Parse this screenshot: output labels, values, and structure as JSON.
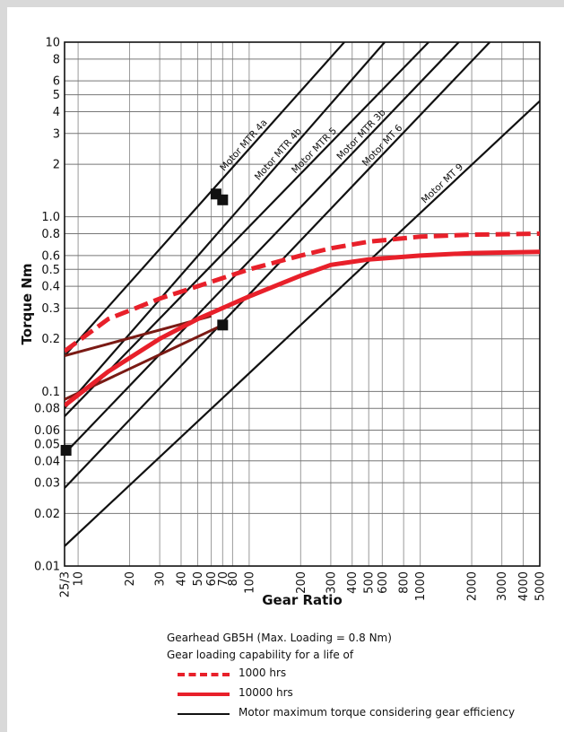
{
  "chart_data": {
    "type": "line",
    "xlabel": "Gear Ratio",
    "ylabel": "Torque Nm",
    "xscale": "log",
    "yscale": "log",
    "xlim": [
      8.3333,
      5000
    ],
    "ylim": [
      0.01,
      10
    ],
    "grid": true,
    "x_ticks": [
      {
        "v": 8.3333,
        "label": "25/3"
      },
      {
        "v": 10,
        "label": "10"
      },
      {
        "v": 20,
        "label": "20"
      },
      {
        "v": 30,
        "label": "30"
      },
      {
        "v": 40,
        "label": "40"
      },
      {
        "v": 50,
        "label": "50"
      },
      {
        "v": 60,
        "label": "60"
      },
      {
        "v": 70,
        "label": "70"
      },
      {
        "v": 80,
        "label": "80"
      },
      {
        "v": 100,
        "label": "100"
      },
      {
        "v": 200,
        "label": "200"
      },
      {
        "v": 300,
        "label": "300"
      },
      {
        "v": 400,
        "label": "400"
      },
      {
        "v": 500,
        "label": "500"
      },
      {
        "v": 600,
        "label": "600"
      },
      {
        "v": 800,
        "label": "800"
      },
      {
        "v": 1000,
        "label": "1000"
      },
      {
        "v": 2000,
        "label": "2000"
      },
      {
        "v": 3000,
        "label": "3000"
      },
      {
        "v": 4000,
        "label": "4000"
      },
      {
        "v": 5000,
        "label": "5000"
      }
    ],
    "y_ticks": [
      {
        "v": 10,
        "label": "10"
      },
      {
        "v": 8,
        "label": "8"
      },
      {
        "v": 6,
        "label": "6"
      },
      {
        "v": 5,
        "label": "5"
      },
      {
        "v": 4,
        "label": "4"
      },
      {
        "v": 3,
        "label": "3"
      },
      {
        "v": 2,
        "label": "2"
      },
      {
        "v": 1,
        "label": "1.0"
      },
      {
        "v": 0.8,
        "label": "0.8"
      },
      {
        "v": 0.6,
        "label": "0.6"
      },
      {
        "v": 0.5,
        "label": "0.5"
      },
      {
        "v": 0.4,
        "label": "0.4"
      },
      {
        "v": 0.3,
        "label": "0.3"
      },
      {
        "v": 0.2,
        "label": "0.2"
      },
      {
        "v": 0.1,
        "label": "0.1"
      },
      {
        "v": 0.08,
        "label": "0.08"
      },
      {
        "v": 0.06,
        "label": "0.06"
      },
      {
        "v": 0.05,
        "label": "0.05"
      },
      {
        "v": 0.04,
        "label": "0.04"
      },
      {
        "v": 0.03,
        "label": "0.03"
      },
      {
        "v": 0.02,
        "label": "0.02"
      },
      {
        "v": 0.01,
        "label": "0.01"
      }
    ],
    "gear_series": [
      {
        "name": "1000 hrs",
        "color": "#e8202a",
        "style": "dashed",
        "x": [
          8.3333,
          15,
          30,
          50,
          100,
          200,
          300,
          500,
          1000,
          2000,
          5000
        ],
        "y": [
          0.17,
          0.26,
          0.34,
          0.4,
          0.5,
          0.6,
          0.66,
          0.72,
          0.77,
          0.79,
          0.8
        ]
      },
      {
        "name": "10000 hrs",
        "color": "#e8202a",
        "style": "solid",
        "x": [
          8.3333,
          15,
          30,
          50,
          100,
          200,
          300,
          500,
          1000,
          2000,
          5000
        ],
        "y": [
          0.083,
          0.13,
          0.2,
          0.26,
          0.35,
          0.46,
          0.53,
          0.57,
          0.6,
          0.62,
          0.63
        ]
      }
    ],
    "motor_series": [
      {
        "name": "Motor MTR 4a",
        "x1": 8.3333,
        "y1": 0.16,
        "x2": 360,
        "y2": 10,
        "label_x": 74
      },
      {
        "name": "Motor MTR 4b",
        "x1": 8.3333,
        "y1": 0.08,
        "x2": 620,
        "y2": 10,
        "label_x": 118
      },
      {
        "name": "Motor MTR 5",
        "x1": 8.3333,
        "y1": 0.072,
        "x2": 1120,
        "y2": 10,
        "label_x": 193
      },
      {
        "name": "Motor MTR 3b",
        "x1": 8.3333,
        "y1": 0.044,
        "x2": 1680,
        "y2": 10,
        "label_x": 355
      },
      {
        "name": "Motor MT 6",
        "x1": 8.3333,
        "y1": 0.028,
        "x2": 2550,
        "y2": 10,
        "label_x": 500
      },
      {
        "name": "Motor MT 9",
        "x1": 8.3333,
        "y1": 0.013,
        "x2": 5000,
        "y2": 4.6,
        "label_x": 1100
      }
    ],
    "markers": [
      {
        "x": 64,
        "y": 1.35
      },
      {
        "x": 70,
        "y": 1.25
      },
      {
        "x": 70,
        "y": 0.24
      },
      {
        "x": 8.5,
        "y": 0.046
      }
    ]
  },
  "legend": {
    "title_line1": "Gearhead GB5H (Max. Loading = 0.8 Nm)",
    "title_line2": "Gear loading capability for a life of",
    "item_1000": "1000 hrs",
    "item_10000": "10000 hrs",
    "item_motor": "Motor maximum torque considering gear efficiency",
    "colors": {
      "gear": "#e8202a",
      "gear_dark": "#7a1a14",
      "motor": "#111111"
    }
  }
}
